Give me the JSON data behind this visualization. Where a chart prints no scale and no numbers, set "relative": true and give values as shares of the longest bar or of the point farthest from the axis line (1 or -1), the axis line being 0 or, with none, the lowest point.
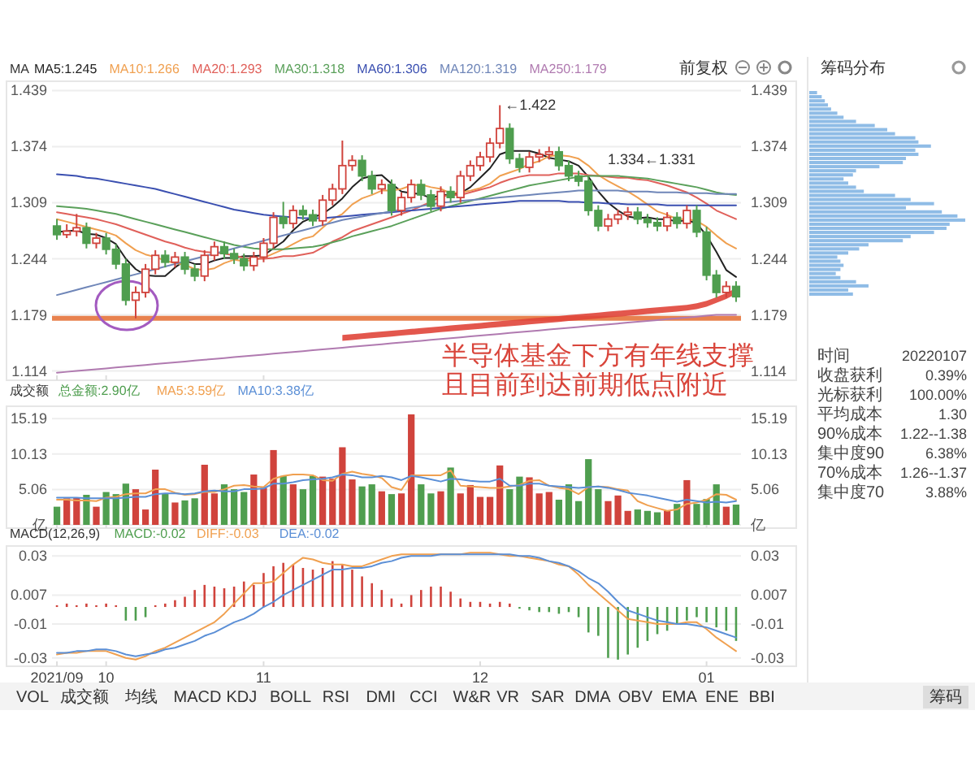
{
  "chart_data": [
    {
      "type": "candlestick",
      "legend": "top left",
      "legend_title": "MA",
      "grid": "y",
      "tick_labels": "y",
      "categories": [
        "2021/09",
        null,
        null,
        null,
        null,
        "10",
        null,
        null,
        null,
        null,
        null,
        null,
        null,
        null,
        null,
        null,
        null,
        null,
        null,
        null,
        null,
        "11",
        null,
        null,
        null,
        null,
        null,
        null,
        null,
        null,
        null,
        null,
        null,
        null,
        null,
        null,
        null,
        null,
        null,
        null,
        null,
        null,
        null,
        "12",
        null,
        null,
        null,
        null,
        null,
        null,
        null,
        null,
        null,
        null,
        null,
        null,
        null,
        null,
        null,
        null,
        null,
        null,
        null,
        null,
        null,
        null,
        "01",
        null,
        null,
        null
      ],
      "colors": [
        "#4f9e4f",
        "#d0433c",
        "#d0433c",
        "#4f9e4f",
        "#d0433c",
        "#4f9e4f",
        "#4f9e4f",
        "#4f9e4f",
        "#d0433c",
        "#d0433c",
        "#d0433c",
        "#4f9e4f",
        "#d0433c",
        "#4f9e4f",
        "#4f9e4f",
        "#d0433c",
        "#d0433c",
        "#4f9e4f",
        "#4f9e4f",
        "#4f9e4f",
        "#d0433c",
        "#d0433c",
        "#d0433c",
        "#4f9e4f",
        "#d0433c",
        "#4f9e4f",
        "#4f9e4f",
        "#d0433c",
        "#d0433c",
        "#d0433c",
        "#d0433c",
        "#4f9e4f",
        "#4f9e4f",
        "#d0433c",
        "#4f9e4f",
        "#d0433c",
        "#d0433c",
        "#4f9e4f",
        "#4f9e4f",
        "#d0433c",
        "#4f9e4f",
        "#d0433c",
        "#d0433c",
        "#d0433c",
        "#d0433c",
        "#d0433c",
        "#4f9e4f",
        "#4f9e4f",
        "#d0433c",
        "#d0433c",
        "#d0433c",
        "#4f9e4f",
        "#4f9e4f",
        "#4f9e4f",
        "#4f9e4f",
        "#4f9e4f",
        "#d0433c",
        "#d0433c",
        "#d0433c",
        "#4f9e4f",
        "#4f9e4f",
        "#4f9e4f",
        "#d0433c",
        "#4f9e4f",
        "#d0433c",
        "#4f9e4f",
        "#4f9e4f",
        "#4f9e4f",
        "#d0433c",
        "#4f9e4f"
      ],
      "ohlc": [
        [
          1.282,
          1.29,
          1.266,
          1.272
        ],
        [
          1.272,
          1.284,
          1.268,
          1.276
        ],
        [
          1.276,
          1.296,
          1.27,
          1.28
        ],
        [
          1.28,
          1.286,
          1.256,
          1.262
        ],
        [
          1.262,
          1.274,
          1.256,
          1.268
        ],
        [
          1.268,
          1.274,
          1.249,
          1.255
        ],
        [
          1.255,
          1.261,
          1.232,
          1.238
        ],
        [
          1.238,
          1.244,
          1.19,
          1.196
        ],
        [
          1.196,
          1.212,
          1.175,
          1.205
        ],
        [
          1.205,
          1.238,
          1.199,
          1.232
        ],
        [
          1.232,
          1.254,
          1.226,
          1.248
        ],
        [
          1.248,
          1.254,
          1.234,
          1.24
        ],
        [
          1.24,
          1.252,
          1.234,
          1.246
        ],
        [
          1.246,
          1.252,
          1.226,
          1.232
        ],
        [
          1.232,
          1.238,
          1.218,
          1.224
        ],
        [
          1.224,
          1.254,
          1.218,
          1.248
        ],
        [
          1.248,
          1.264,
          1.242,
          1.258
        ],
        [
          1.258,
          1.264,
          1.244,
          1.25
        ],
        [
          1.25,
          1.256,
          1.238,
          1.244
        ],
        [
          1.244,
          1.25,
          1.23,
          1.236
        ],
        [
          1.236,
          1.252,
          1.23,
          1.246
        ],
        [
          1.246,
          1.268,
          1.24,
          1.262
        ],
        [
          1.262,
          1.298,
          1.256,
          1.292
        ],
        [
          1.292,
          1.31,
          1.279,
          1.285
        ],
        [
          1.285,
          1.306,
          1.279,
          1.3
        ],
        [
          1.3,
          1.306,
          1.289,
          1.295
        ],
        [
          1.295,
          1.301,
          1.282,
          1.288
        ],
        [
          1.288,
          1.318,
          1.282,
          1.312
        ],
        [
          1.312,
          1.331,
          1.306,
          1.325
        ],
        [
          1.325,
          1.381,
          1.319,
          1.352
        ],
        [
          1.352,
          1.364,
          1.346,
          1.358
        ],
        [
          1.358,
          1.364,
          1.334,
          1.34
        ],
        [
          1.34,
          1.346,
          1.319,
          1.325
        ],
        [
          1.325,
          1.336,
          1.319,
          1.33
        ],
        [
          1.33,
          1.336,
          1.294,
          1.3
        ],
        [
          1.3,
          1.321,
          1.294,
          1.315
        ],
        [
          1.315,
          1.336,
          1.309,
          1.33
        ],
        [
          1.33,
          1.336,
          1.312,
          1.318
        ],
        [
          1.318,
          1.324,
          1.299,
          1.305
        ],
        [
          1.305,
          1.328,
          1.299,
          1.322
        ],
        [
          1.322,
          1.328,
          1.309,
          1.315
        ],
        [
          1.315,
          1.346,
          1.309,
          1.34
        ],
        [
          1.34,
          1.358,
          1.334,
          1.352
        ],
        [
          1.352,
          1.368,
          1.346,
          1.362
        ],
        [
          1.362,
          1.384,
          1.356,
          1.378
        ],
        [
          1.378,
          1.422,
          1.372,
          1.395
        ],
        [
          1.395,
          1.401,
          1.354,
          1.36
        ],
        [
          1.36,
          1.366,
          1.344,
          1.35
        ],
        [
          1.35,
          1.368,
          1.344,
          1.362
        ],
        [
          1.362,
          1.371,
          1.356,
          1.365
        ],
        [
          1.365,
          1.374,
          1.359,
          1.368
        ],
        [
          1.368,
          1.374,
          1.346,
          1.352
        ],
        [
          1.352,
          1.358,
          1.334,
          1.34
        ],
        [
          1.34,
          1.346,
          1.328,
          1.334
        ],
        [
          1.334,
          1.34,
          1.294,
          1.3
        ],
        [
          1.3,
          1.306,
          1.276,
          1.282
        ],
        [
          1.282,
          1.296,
          1.276,
          1.29
        ],
        [
          1.29,
          1.301,
          1.284,
          1.295
        ],
        [
          1.295,
          1.304,
          1.289,
          1.298
        ],
        [
          1.298,
          1.304,
          1.284,
          1.29
        ],
        [
          1.29,
          1.296,
          1.28,
          1.286
        ],
        [
          1.286,
          1.292,
          1.276,
          1.282
        ],
        [
          1.282,
          1.298,
          1.276,
          1.292
        ],
        [
          1.292,
          1.298,
          1.279,
          1.285
        ],
        [
          1.285,
          1.306,
          1.279,
          1.3
        ],
        [
          1.3,
          1.306,
          1.269,
          1.275
        ],
        [
          1.275,
          1.281,
          1.219,
          1.225
        ],
        [
          1.225,
          1.231,
          1.199,
          1.205
        ],
        [
          1.205,
          1.218,
          1.199,
          1.212
        ],
        [
          1.212,
          1.218,
          1.194,
          1.2
        ]
      ],
      "series": [
        {
          "type": "line",
          "name": "MA5:1.245",
          "color": "#222222",
          "values": [
            1.275,
            1.276,
            1.277,
            1.273,
            1.272,
            1.268,
            1.261,
            1.244,
            1.232,
            1.225,
            1.224,
            1.224,
            1.234,
            1.242,
            1.238,
            1.238,
            1.242,
            1.245,
            1.245,
            1.247,
            1.247,
            1.248,
            1.256,
            1.264,
            1.277,
            1.287,
            1.292,
            1.296,
            1.304,
            1.314,
            1.327,
            1.337,
            1.34,
            1.341,
            1.331,
            1.322,
            1.32,
            1.319,
            1.314,
            1.318,
            1.318,
            1.32,
            1.327,
            1.338,
            1.349,
            1.365,
            1.369,
            1.369,
            1.369,
            1.366,
            1.361,
            1.359,
            1.357,
            1.352,
            1.339,
            1.322,
            1.309,
            1.3,
            1.293,
            1.291,
            1.292,
            1.29,
            1.29,
            1.287,
            1.289,
            1.285,
            1.271,
            1.252,
            1.231,
            1.223
          ]
        },
        {
          "type": "line",
          "name": "MA10:1.266",
          "color": "#f0a050",
          "values": [
            1.29,
            1.287,
            1.284,
            1.281,
            1.278,
            1.275,
            1.271,
            1.262,
            1.254,
            1.249,
            1.246,
            1.242,
            1.239,
            1.237,
            1.232,
            1.231,
            1.233,
            1.239,
            1.243,
            1.241,
            1.243,
            1.245,
            1.25,
            1.255,
            1.261,
            1.267,
            1.27,
            1.28,
            1.29,
            1.296,
            1.307,
            1.314,
            1.318,
            1.323,
            1.323,
            1.325,
            1.329,
            1.33,
            1.327,
            1.325,
            1.32,
            1.321,
            1.323,
            1.326,
            1.331,
            1.34,
            1.344,
            1.348,
            1.354,
            1.357,
            1.363,
            1.364,
            1.363,
            1.36,
            1.352,
            1.341,
            1.334,
            1.328,
            1.322,
            1.315,
            1.307,
            1.299,
            1.295,
            1.29,
            1.29,
            1.288,
            1.281,
            1.271,
            1.262,
            1.256
          ]
        },
        {
          "type": "line",
          "name": "MA20:1.293",
          "color": "#e0605a",
          "values": [
            1.298,
            1.296,
            1.294,
            1.292,
            1.29,
            1.287,
            1.284,
            1.28,
            1.276,
            1.272,
            1.268,
            1.264,
            1.261,
            1.257,
            1.254,
            1.252,
            1.251,
            1.25,
            1.248,
            1.245,
            1.244,
            1.244,
            1.245,
            1.247,
            1.247,
            1.249,
            1.251,
            1.257,
            1.264,
            1.269,
            1.276,
            1.28,
            1.284,
            1.288,
            1.292,
            1.296,
            1.3,
            1.305,
            1.31,
            1.316,
            1.318,
            1.318,
            1.321,
            1.324,
            1.327,
            1.332,
            1.336,
            1.339,
            1.341,
            1.341,
            1.341,
            1.343,
            1.343,
            1.343,
            1.341,
            1.34,
            1.339,
            1.338,
            1.338,
            1.336,
            1.335,
            1.332,
            1.329,
            1.325,
            1.321,
            1.315,
            1.308,
            1.3,
            1.295,
            1.29
          ]
        },
        {
          "type": "line",
          "name": "MA30:1.318",
          "color": "#5aa05a",
          "values": [
            1.305,
            1.304,
            1.303,
            1.302,
            1.3,
            1.298,
            1.296,
            1.293,
            1.29,
            1.287,
            1.284,
            1.281,
            1.278,
            1.275,
            1.272,
            1.269,
            1.266,
            1.263,
            1.26,
            1.258,
            1.256,
            1.255,
            1.255,
            1.255,
            1.256,
            1.257,
            1.258,
            1.26,
            1.263,
            1.266,
            1.27,
            1.273,
            1.276,
            1.279,
            1.282,
            1.286,
            1.29,
            1.294,
            1.298,
            1.302,
            1.305,
            1.308,
            1.311,
            1.314,
            1.317,
            1.32,
            1.323,
            1.326,
            1.329,
            1.331,
            1.333,
            1.335,
            1.337,
            1.339,
            1.34,
            1.34,
            1.34,
            1.34,
            1.339,
            1.338,
            1.337,
            1.335,
            1.333,
            1.331,
            1.329,
            1.327,
            1.324,
            1.321,
            1.319,
            1.318
          ]
        },
        {
          "type": "line",
          "name": "MA60:1.306",
          "color": "#3a4fb0",
          "values": [
            1.342,
            1.341,
            1.34,
            1.338,
            1.337,
            1.335,
            1.333,
            1.331,
            1.329,
            1.327,
            1.325,
            1.322,
            1.319,
            1.316,
            1.313,
            1.31,
            1.307,
            1.304,
            1.301,
            1.299,
            1.297,
            1.295,
            1.294,
            1.293,
            1.292,
            1.291,
            1.291,
            1.291,
            1.292,
            1.293,
            1.294,
            1.295,
            1.296,
            1.297,
            1.298,
            1.299,
            1.3,
            1.301,
            1.302,
            1.303,
            1.304,
            1.305,
            1.306,
            1.307,
            1.308,
            1.309,
            1.31,
            1.311,
            1.311,
            1.311,
            1.311,
            1.311,
            1.31,
            1.31,
            1.309,
            1.309,
            1.308,
            1.308,
            1.307,
            1.307,
            1.307,
            1.307,
            1.306,
            1.306,
            1.306,
            1.306,
            1.306,
            1.306,
            1.306,
            1.306
          ]
        },
        {
          "type": "line",
          "name": "MA120:1.319",
          "color": "#6f86b8",
          "values": [
            1.202,
            1.205,
            1.208,
            1.211,
            1.214,
            1.217,
            1.22,
            1.223,
            1.226,
            1.229,
            1.232,
            1.235,
            1.238,
            1.241,
            1.244,
            1.247,
            1.25,
            1.253,
            1.256,
            1.259,
            1.262,
            1.265,
            1.268,
            1.271,
            1.274,
            1.277,
            1.28,
            1.283,
            1.286,
            1.289,
            1.291,
            1.293,
            1.295,
            1.297,
            1.299,
            1.301,
            1.303,
            1.305,
            1.307,
            1.309,
            1.31,
            1.311,
            1.312,
            1.313,
            1.314,
            1.315,
            1.316,
            1.317,
            1.318,
            1.319,
            1.32,
            1.321,
            1.322,
            1.323,
            1.323,
            1.323,
            1.323,
            1.323,
            1.322,
            1.322,
            1.322,
            1.321,
            1.321,
            1.321,
            1.32,
            1.32,
            1.32,
            1.319,
            1.319,
            1.319
          ]
        },
        {
          "type": "line",
          "name": "MA250:1.179",
          "color": "#b07ab0",
          "values": [
            1.112,
            1.113,
            1.114,
            1.115,
            1.116,
            1.117,
            1.118,
            1.119,
            1.12,
            1.121,
            1.122,
            1.123,
            1.124,
            1.125,
            1.126,
            1.127,
            1.128,
            1.129,
            1.13,
            1.131,
            1.132,
            1.133,
            1.134,
            1.135,
            1.136,
            1.137,
            1.138,
            1.139,
            1.14,
            1.141,
            1.142,
            1.143,
            1.144,
            1.145,
            1.146,
            1.147,
            1.148,
            1.149,
            1.15,
            1.151,
            1.152,
            1.153,
            1.154,
            1.155,
            1.156,
            1.157,
            1.158,
            1.159,
            1.16,
            1.161,
            1.162,
            1.163,
            1.164,
            1.165,
            1.166,
            1.167,
            1.168,
            1.169,
            1.17,
            1.171,
            1.172,
            1.173,
            1.174,
            1.175,
            1.176,
            1.177,
            1.178,
            1.179,
            1.179,
            1.179
          ]
        }
      ],
      "ylim": [
        1.107,
        1.446
      ],
      "yticks": [
        1.114,
        1.179,
        1.244,
        1.309,
        1.374,
        1.439
      ],
      "y2lim": [
        1.107,
        1.446
      ],
      "y2ticks": [
        1.114,
        1.179,
        1.244,
        1.309,
        1.374,
        1.439
      ],
      "ref_lines": [
        {
          "axis": "y",
          "value": 1.175,
          "color": "#e8824f"
        }
      ],
      "annotations": [
        "←1.422",
        "1.334←1.331",
        "半导体基金下方有年线支撑",
        "且目前到达前期低点附近"
      ]
    },
    {
      "type": "bar",
      "legend": "top left",
      "legend_title": "成交额",
      "grid": "y",
      "tick_labels": "y",
      "categories": [
        "2021/09",
        null,
        null,
        null,
        null,
        "10",
        null,
        null,
        null,
        null,
        null,
        null,
        null,
        null,
        null,
        null,
        null,
        null,
        null,
        null,
        null,
        "11",
        null,
        null,
        null,
        null,
        null,
        null,
        null,
        null,
        null,
        null,
        null,
        null,
        null,
        null,
        null,
        null,
        null,
        null,
        null,
        null,
        null,
        "12",
        null,
        null,
        null,
        null,
        null,
        null,
        null,
        null,
        null,
        null,
        null,
        null,
        null,
        null,
        null,
        null,
        null,
        null,
        null,
        null,
        null,
        null,
        "01",
        null,
        null,
        null
      ],
      "series": [
        {
          "type": "bar",
          "name": "总金额:2.90亿",
          "color": "#4f9e4f",
          "values": [
            2.6,
            3.8,
            3.9,
            4.3,
            2.6,
            4.7,
            4.4,
            5.9,
            5.1,
            2.2,
            7.9,
            4.5,
            3.2,
            3.5,
            3.8,
            8.6,
            4.5,
            5.8,
            5.1,
            4.7,
            7.2,
            5.3,
            10.7,
            7.0,
            5.8,
            5.1,
            7.0,
            6.9,
            6.6,
            11.1,
            6.5,
            5.5,
            5.8,
            4.8,
            4.4,
            4.5,
            15.8,
            5.8,
            4.5,
            4.8,
            8.2,
            4.5,
            5.7,
            4.0,
            4.0,
            8.5,
            5.1,
            6.9,
            6.8,
            4.5,
            4.7,
            3.6,
            5.8,
            3.4,
            9.4,
            5.1,
            3.4,
            4.2,
            2.0,
            2.2,
            2.0,
            1.8,
            2.0,
            3.0,
            6.4,
            3.0,
            3.7,
            5.8,
            2.6,
            2.9
          ],
          "colors": [
            "#4f9e4f",
            "#d0433c",
            "#d0433c",
            "#4f9e4f",
            "#d0433c",
            "#4f9e4f",
            "#4f9e4f",
            "#4f9e4f",
            "#d0433c",
            "#d0433c",
            "#d0433c",
            "#4f9e4f",
            "#d0433c",
            "#4f9e4f",
            "#4f9e4f",
            "#d0433c",
            "#d0433c",
            "#4f9e4f",
            "#4f9e4f",
            "#4f9e4f",
            "#d0433c",
            "#d0433c",
            "#d0433c",
            "#4f9e4f",
            "#d0433c",
            "#4f9e4f",
            "#4f9e4f",
            "#d0433c",
            "#d0433c",
            "#d0433c",
            "#d0433c",
            "#4f9e4f",
            "#4f9e4f",
            "#d0433c",
            "#4f9e4f",
            "#d0433c",
            "#d0433c",
            "#4f9e4f",
            "#4f9e4f",
            "#d0433c",
            "#4f9e4f",
            "#d0433c",
            "#d0433c",
            "#d0433c",
            "#d0433c",
            "#d0433c",
            "#4f9e4f",
            "#4f9e4f",
            "#d0433c",
            "#d0433c",
            "#d0433c",
            "#4f9e4f",
            "#4f9e4f",
            "#4f9e4f",
            "#4f9e4f",
            "#4f9e4f",
            "#d0433c",
            "#d0433c",
            "#d0433c",
            "#4f9e4f",
            "#4f9e4f",
            "#4f9e4f",
            "#d0433c",
            "#4f9e4f",
            "#d0433c",
            "#4f9e4f",
            "#4f9e4f",
            "#4f9e4f",
            "#d0433c",
            "#4f9e4f"
          ]
        },
        {
          "type": "line",
          "name": "MA5:3.59亿",
          "color": "#f0a050",
          "values": [
            3.6,
            3.6,
            3.5,
            3.5,
            3.4,
            3.9,
            4.0,
            4.4,
            4.5,
            4.5,
            5.1,
            5.1,
            4.6,
            4.3,
            4.4,
            4.7,
            4.7,
            5.1,
            5.6,
            5.7,
            5.5,
            5.4,
            6.6,
            7.0,
            7.2,
            7.2,
            7.1,
            6.4,
            6.3,
            7.3,
            7.6,
            7.3,
            7.1,
            6.7,
            5.4,
            5.0,
            7.1,
            7.1,
            7.1,
            7.1,
            7.8,
            5.6,
            5.5,
            5.4,
            5.3,
            5.3,
            5.5,
            5.7,
            6.3,
            6.4,
            5.6,
            5.3,
            5.1,
            4.4,
            5.4,
            5.5,
            5.4,
            5.1,
            4.9,
            3.4,
            2.8,
            2.4,
            2.0,
            2.2,
            3.0,
            3.2,
            3.6,
            4.4,
            4.3,
            3.6
          ]
        },
        {
          "type": "line",
          "name": "MA10:3.38亿",
          "color": "#5b8fd6",
          "values": [
            3.9,
            3.9,
            3.9,
            3.8,
            3.8,
            3.8,
            3.8,
            3.9,
            4.0,
            4.0,
            4.4,
            4.5,
            4.5,
            4.4,
            4.5,
            4.8,
            4.9,
            4.8,
            4.8,
            5.1,
            5.1,
            5.2,
            5.9,
            5.9,
            6.1,
            6.4,
            6.5,
            6.6,
            6.8,
            7.2,
            7.1,
            6.8,
            6.8,
            7.0,
            6.8,
            6.4,
            7.0,
            6.8,
            6.5,
            6.2,
            6.6,
            6.5,
            6.3,
            6.2,
            6.2,
            6.6,
            5.6,
            5.6,
            5.9,
            5.9,
            5.6,
            5.5,
            5.4,
            5.3,
            5.4,
            5.5,
            5.3,
            5.0,
            4.6,
            4.4,
            4.2,
            3.9,
            3.6,
            3.3,
            3.6,
            3.4,
            3.2,
            3.3,
            3.2,
            3.4
          ]
        }
      ],
      "ylim": [
        0,
        16.5
      ],
      "yticks": [
        {
          "value": 0,
          "label": "亿"
        },
        5.06,
        10.13,
        15.19
      ],
      "y2lim": [
        0,
        16.5
      ],
      "y2ticks": [
        {
          "value": 0,
          "label": "亿"
        },
        5.06,
        10.13,
        15.19
      ]
    },
    {
      "type": "bar",
      "legend": "top left",
      "legend_title": "MACD(12,26,9)",
      "grid": "y",
      "categories": [
        "2021/09",
        null,
        null,
        null,
        null,
        "10",
        null,
        null,
        null,
        null,
        null,
        null,
        null,
        null,
        null,
        null,
        null,
        null,
        null,
        null,
        null,
        "11",
        null,
        null,
        null,
        null,
        null,
        null,
        null,
        null,
        null,
        null,
        null,
        null,
        null,
        null,
        null,
        null,
        null,
        null,
        null,
        null,
        null,
        "12",
        null,
        null,
        null,
        null,
        null,
        null,
        null,
        null,
        null,
        null,
        null,
        null,
        null,
        null,
        null,
        null,
        null,
        null,
        null,
        null,
        null,
        null,
        "01",
        null,
        null,
        null
      ],
      "series": [
        {
          "type": "bar",
          "name": "MACD:-0.02",
          "color": "#4f9e4f",
          "values": [
            0.001,
            0.002,
            0.001,
            0.002,
            0.001,
            0.002,
            0.001,
            -0.008,
            -0.008,
            -0.006,
            0.001,
            0.002,
            0.004,
            0.006,
            0.01,
            0.013,
            0.012,
            0.011,
            0.012,
            0.015,
            0.013,
            0.02,
            0.024,
            0.026,
            0.025,
            0.023,
            0.022,
            0.023,
            0.027,
            0.025,
            0.022,
            0.018,
            0.014,
            0.01,
            0.005,
            0.002,
            0.007,
            0.01,
            0.012,
            0.012,
            0.009,
            0.005,
            0.003,
            0.003,
            0.002,
            0.003,
            0.002,
            -0.001,
            -0.002,
            -0.003,
            -0.003,
            -0.004,
            -0.003,
            -0.006,
            -0.015,
            -0.017,
            -0.03,
            -0.031,
            -0.028,
            -0.024,
            -0.02,
            -0.016,
            -0.014,
            -0.01,
            -0.008,
            -0.006,
            -0.009,
            -0.012,
            -0.014,
            -0.02
          ],
          "colors": [
            "#d0433c",
            "#d0433c",
            "#d0433c",
            "#d0433c",
            "#d0433c",
            "#d0433c",
            "#d0433c",
            "#4f9e4f",
            "#4f9e4f",
            "#4f9e4f",
            "#d0433c",
            "#d0433c",
            "#d0433c",
            "#d0433c",
            "#d0433c",
            "#d0433c",
            "#d0433c",
            "#d0433c",
            "#d0433c",
            "#d0433c",
            "#d0433c",
            "#d0433c",
            "#d0433c",
            "#d0433c",
            "#d0433c",
            "#d0433c",
            "#d0433c",
            "#d0433c",
            "#d0433c",
            "#d0433c",
            "#d0433c",
            "#d0433c",
            "#d0433c",
            "#d0433c",
            "#d0433c",
            "#d0433c",
            "#d0433c",
            "#d0433c",
            "#d0433c",
            "#d0433c",
            "#d0433c",
            "#d0433c",
            "#d0433c",
            "#d0433c",
            "#d0433c",
            "#d0433c",
            "#d0433c",
            "#4f9e4f",
            "#4f9e4f",
            "#4f9e4f",
            "#4f9e4f",
            "#4f9e4f",
            "#4f9e4f",
            "#4f9e4f",
            "#4f9e4f",
            "#4f9e4f",
            "#4f9e4f",
            "#4f9e4f",
            "#4f9e4f",
            "#4f9e4f",
            "#4f9e4f",
            "#4f9e4f",
            "#4f9e4f",
            "#4f9e4f",
            "#4f9e4f",
            "#4f9e4f",
            "#4f9e4f",
            "#4f9e4f",
            "#4f9e4f",
            "#4f9e4f"
          ]
        },
        {
          "type": "line",
          "name": "DIFF:-0.03",
          "color": "#f0a050",
          "values": [
            -0.028,
            -0.027,
            -0.027,
            -0.026,
            -0.026,
            -0.026,
            -0.028,
            -0.03,
            -0.031,
            -0.029,
            -0.026,
            -0.024,
            -0.021,
            -0.018,
            -0.015,
            -0.012,
            -0.009,
            -0.004,
            0.002,
            0.008,
            0.014,
            0.014,
            0.015,
            0.02,
            0.025,
            0.029,
            0.028,
            0.026,
            0.025,
            0.025,
            0.024,
            0.024,
            0.026,
            0.028,
            0.03,
            0.031,
            0.031,
            0.031,
            0.031,
            0.031,
            0.031,
            0.031,
            0.032,
            0.032,
            0.032,
            0.031,
            0.03,
            0.03,
            0.029,
            0.028,
            0.027,
            0.025,
            0.024,
            0.019,
            0.013,
            0.008,
            0.003,
            -0.002,
            -0.007,
            -0.008,
            -0.009,
            -0.01,
            -0.01,
            -0.01,
            -0.009,
            -0.009,
            -0.013,
            -0.018,
            -0.022,
            -0.026
          ]
        },
        {
          "type": "line",
          "name": "DEA:-0.02",
          "color": "#5b8fd6",
          "values": [
            -0.027,
            -0.027,
            -0.026,
            -0.026,
            -0.025,
            -0.025,
            -0.026,
            -0.028,
            -0.029,
            -0.028,
            -0.027,
            -0.025,
            -0.024,
            -0.022,
            -0.02,
            -0.017,
            -0.015,
            -0.012,
            -0.009,
            -0.007,
            -0.004,
            0.0,
            0.003,
            0.007,
            0.01,
            0.013,
            0.016,
            0.019,
            0.022,
            0.022,
            0.023,
            0.023,
            0.024,
            0.026,
            0.027,
            0.029,
            0.03,
            0.03,
            0.03,
            0.031,
            0.031,
            0.031,
            0.031,
            0.031,
            0.031,
            0.031,
            0.031,
            0.03,
            0.03,
            0.029,
            0.027,
            0.026,
            0.024,
            0.021,
            0.017,
            0.014,
            0.009,
            0.003,
            -0.002,
            -0.004,
            -0.006,
            -0.008,
            -0.009,
            -0.01,
            -0.01,
            -0.011,
            -0.012,
            -0.014,
            -0.016,
            -0.018
          ]
        }
      ],
      "ylim": [
        -0.033,
        0.034
      ],
      "yticks": [
        0.03,
        0.007,
        -0.01,
        -0.03
      ],
      "y2lim": [
        -0.033,
        0.034
      ],
      "y2ticks": [
        0.03,
        0.007,
        -0.01,
        -0.03
      ]
    },
    {
      "type": "bar",
      "orientation": "horizontal",
      "relative": true,
      "title": "筹码分布",
      "tick_labels": false,
      "color": "#8fbce6",
      "categories": [
        null,
        null,
        null,
        null,
        null,
        null,
        null,
        null,
        null,
        null,
        null,
        null,
        null,
        null,
        null,
        null,
        null,
        null,
        null,
        null,
        null,
        null,
        null,
        null,
        null,
        null,
        null,
        null,
        null,
        null,
        null,
        null,
        null,
        null,
        null,
        null,
        null,
        null,
        null,
        null,
        null,
        null,
        null,
        null,
        null,
        null,
        null,
        null,
        null,
        null
      ],
      "values": [
        0.05,
        0.08,
        0.1,
        0.12,
        0.14,
        0.18,
        0.22,
        0.3,
        0.42,
        0.5,
        0.55,
        0.68,
        0.7,
        0.78,
        0.68,
        0.7,
        0.62,
        0.6,
        0.45,
        0.3,
        0.28,
        0.22,
        0.25,
        0.3,
        0.35,
        0.55,
        0.65,
        0.8,
        0.62,
        0.85,
        0.95,
        1.0,
        0.9,
        0.88,
        0.8,
        0.65,
        0.6,
        0.38,
        0.32,
        0.25,
        0.18,
        0.2,
        0.22,
        0.2,
        0.17,
        0.2,
        0.3,
        0.38,
        0.25,
        0.28
      ]
    },
    {
      "type": "other",
      "categories": [
        "时间",
        "收盘获利",
        "光标获利",
        "平均成本",
        "90%成本",
        "集中度90",
        "70%成本",
        "集中度70"
      ],
      "value_labels": [
        "20220107",
        "0.39%",
        "100.00%",
        "1.30",
        "1.22--1.38",
        "6.38%",
        "1.26--1.37",
        "3.88%"
      ]
    },
    {
      "type": "other",
      "categories": [
        "VOL",
        "成交额",
        "均线",
        "MACD",
        "KDJ",
        "BOLL",
        "RSI",
        "DMI",
        "CCI",
        "W&R",
        "VR",
        "SAR",
        "DMA",
        "OBV",
        "EMA",
        "ENE",
        "BBI"
      ],
      "annotations": [
        "前复权",
        "筹码"
      ]
    }
  ]
}
